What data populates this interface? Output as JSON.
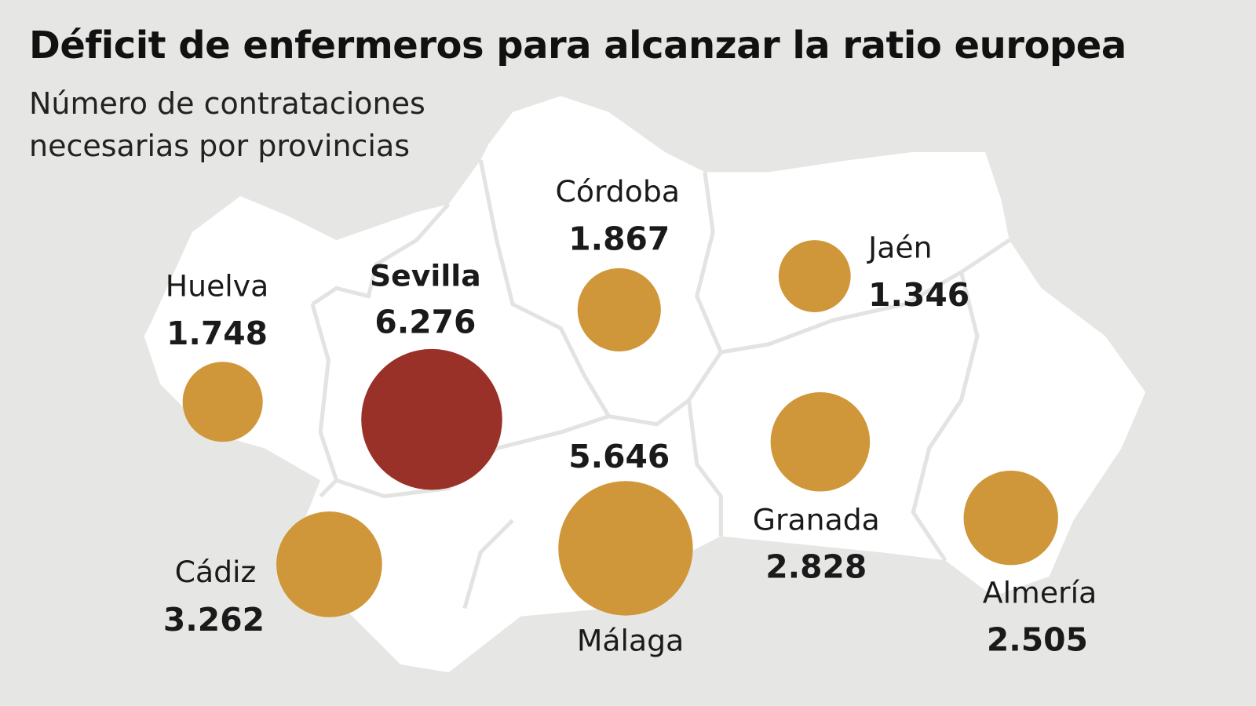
{
  "header": {
    "title": "Déficit de enfermeros para alcanzar la ratio europea",
    "subtitle": "Número de contrataciones necesarias por provincias"
  },
  "colors": {
    "background": "#e6e7e4",
    "land": "#ffffff",
    "borders": "#e3e3e1",
    "highlight": "#9a3128",
    "default": "#cf9739"
  },
  "provinces": [
    {
      "name": "Huelva",
      "value": "1.748"
    },
    {
      "name": "Sevilla",
      "value": "6.276"
    },
    {
      "name": "Córdoba",
      "value": "1.867"
    },
    {
      "name": "Jaén",
      "value": "1.346"
    },
    {
      "name": "Granada",
      "value": "2.828"
    },
    {
      "name": "Almería",
      "value": "2.505"
    },
    {
      "name": "Málaga",
      "value": "5.646"
    },
    {
      "name": "Cádiz",
      "value": "3.262"
    }
  ]
}
